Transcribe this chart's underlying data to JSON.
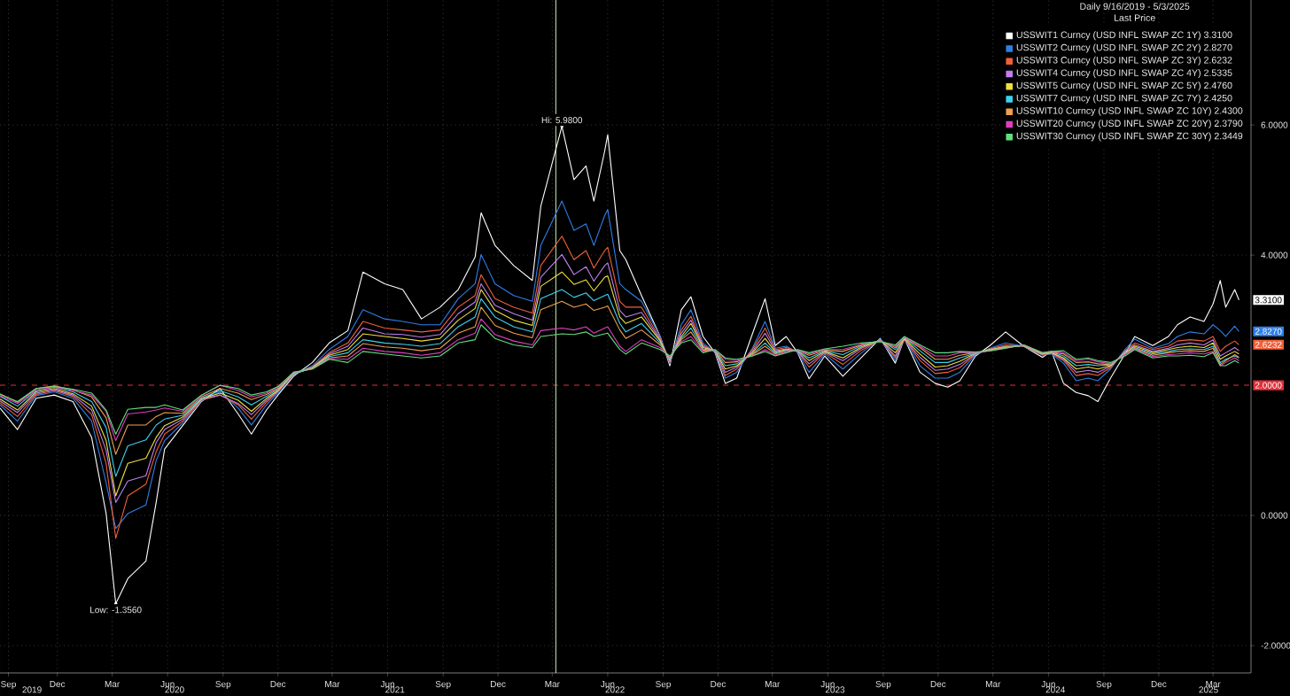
{
  "chart_data": {
    "type": "line",
    "title": "Daily 9/16/2019 - 5/3/2025",
    "subtitle": "Last Price",
    "legend": "top right",
    "grid": true,
    "xlim": [
      "2019-09-16",
      "2025-05-22"
    ],
    "ylim": [
      -2.42,
      7.92
    ],
    "yticks": [
      {
        "value": -2,
        "label": "-2.0000"
      },
      {
        "value": 0,
        "label": "0.0000"
      },
      {
        "value": 4,
        "label": "4.0000"
      },
      {
        "value": 6,
        "label": "6.0000"
      }
    ],
    "xticks": [
      {
        "value": "2019-09-30",
        "label": "Sep"
      },
      {
        "value": "2019-12-20",
        "label": "Dec"
      },
      {
        "value": "2020-03-20",
        "label": "Mar"
      },
      {
        "value": "2020-06-20",
        "label": "Jun"
      },
      {
        "value": "2020-09-20",
        "label": "Sep"
      },
      {
        "value": "2020-12-20",
        "label": "Dec"
      },
      {
        "value": "2021-03-20",
        "label": "Mar"
      },
      {
        "value": "2021-06-20",
        "label": "Jun"
      },
      {
        "value": "2021-09-20",
        "label": "Sep"
      },
      {
        "value": "2021-12-20",
        "label": "Dec"
      },
      {
        "value": "2022-03-20",
        "label": "Mar"
      },
      {
        "value": "2022-06-20",
        "label": "Jun"
      },
      {
        "value": "2022-09-20",
        "label": "Sep"
      },
      {
        "value": "2022-12-20",
        "label": "Dec"
      },
      {
        "value": "2023-03-20",
        "label": "Mar"
      },
      {
        "value": "2023-06-20",
        "label": "Jun"
      },
      {
        "value": "2023-09-20",
        "label": "Sep"
      },
      {
        "value": "2023-12-20",
        "label": "Dec"
      },
      {
        "value": "2024-03-20",
        "label": "Mar"
      },
      {
        "value": "2024-06-20",
        "label": "Jun"
      },
      {
        "value": "2024-09-20",
        "label": "Sep"
      },
      {
        "value": "2024-12-20",
        "label": "Dec"
      },
      {
        "value": "2025-03-20",
        "label": "Mar"
      }
    ],
    "ref_lines": [
      {
        "axis": "y",
        "value": 2,
        "label": "2.0000",
        "color": "#e0303a",
        "line_style": "dashed"
      },
      {
        "axis": "x",
        "value": "2022-03-26",
        "color": "#a8d08d"
      }
    ],
    "annotations": [
      {
        "text": "Hi: 5.9800",
        "x": "2022-04-05",
        "y": 5.98
      },
      {
        "text": "Low: -1.3560",
        "x": "2020-03-26",
        "y": -1.356
      },
      "2019",
      "2020",
      "2021",
      "2022",
      "2023",
      "2024",
      "2025"
    ],
    "x": [
      "2019-09-16",
      "2019-10-15",
      "2019-11-15",
      "2019-12-15",
      "2020-01-15",
      "2020-02-15",
      "2020-03-10",
      "2020-03-26",
      "2020-04-15",
      "2020-05-15",
      "2020-06-01",
      "2020-06-15",
      "2020-07-15",
      "2020-08-15",
      "2020-09-15",
      "2020-10-15",
      "2020-11-06",
      "2020-12-01",
      "2020-12-20",
      "2021-01-15",
      "2021-02-15",
      "2021-03-15",
      "2021-04-15",
      "2021-05-10",
      "2021-06-15",
      "2021-07-15",
      "2021-08-15",
      "2021-09-15",
      "2021-10-15",
      "2021-11-12",
      "2021-11-22",
      "2021-12-15",
      "2022-01-15",
      "2022-02-15",
      "2022-03-01",
      "2022-04-05",
      "2022-04-25",
      "2022-05-15",
      "2022-05-28",
      "2022-06-15",
      "2022-06-20",
      "2022-07-10",
      "2022-07-20",
      "2022-08-15",
      "2022-09-15",
      "2022-10-01",
      "2022-10-20",
      "2022-11-05",
      "2022-11-25",
      "2022-12-15",
      "2023-01-01",
      "2023-01-20",
      "2023-02-15",
      "2023-03-08",
      "2023-03-25",
      "2023-04-12",
      "2023-05-01",
      "2023-05-20",
      "2023-06-15",
      "2023-07-15",
      "2023-08-15",
      "2023-09-15",
      "2023-10-10",
      "2023-10-25",
      "2023-11-20",
      "2023-12-15",
      "2024-01-05",
      "2024-01-25",
      "2024-02-20",
      "2024-03-15",
      "2024-04-10",
      "2024-05-10",
      "2024-06-10",
      "2024-06-25",
      "2024-07-15",
      "2024-08-05",
      "2024-08-25",
      "2024-09-10",
      "2024-10-01",
      "2024-10-25",
      "2024-11-10",
      "2024-12-10",
      "2025-01-05",
      "2025-01-20",
      "2025-02-10",
      "2025-03-05",
      "2025-03-20",
      "2025-04-01",
      "2025-04-10",
      "2025-04-25",
      "2025-05-02"
    ],
    "series": [
      {
        "name": "USSWIT1 Curncy (USD INFL SWAP ZC 1Y) 3.3100",
        "color": "#ffffff",
        "values": [
          1.65,
          1.32,
          1.8,
          1.85,
          1.75,
          1.2,
          0.03,
          -1.356,
          -0.97,
          -0.7,
          0.2,
          1.02,
          1.38,
          1.75,
          1.95,
          1.56,
          1.25,
          1.62,
          1.85,
          2.14,
          2.35,
          2.65,
          2.84,
          3.74,
          3.56,
          3.47,
          3.02,
          3.2,
          3.47,
          3.97,
          4.65,
          4.15,
          3.84,
          3.61,
          4.75,
          5.98,
          5.16,
          5.37,
          4.83,
          5.6,
          5.85,
          4.07,
          3.93,
          3.38,
          2.75,
          2.3,
          3.16,
          3.36,
          2.75,
          2.5,
          2.03,
          2.11,
          2.79,
          3.33,
          2.61,
          2.75,
          2.5,
          2.1,
          2.45,
          2.14,
          2.43,
          2.72,
          2.34,
          2.72,
          2.2,
          2.03,
          1.97,
          2.07,
          2.45,
          2.61,
          2.82,
          2.6,
          2.43,
          2.52,
          2.03,
          1.89,
          1.84,
          1.75,
          2.11,
          2.48,
          2.75,
          2.61,
          2.75,
          2.93,
          3.05,
          2.98,
          3.25,
          3.61,
          3.2,
          3.47,
          3.31
        ],
        "value_labels": [
          null,
          null,
          null,
          null,
          null,
          null,
          null,
          null,
          null,
          null,
          null,
          null,
          null,
          null,
          null,
          null,
          null,
          null,
          null,
          null,
          null,
          null,
          null,
          null,
          null,
          null,
          null,
          null,
          null,
          null,
          null,
          null,
          null,
          null,
          null,
          null,
          null,
          null,
          null,
          null,
          null,
          null,
          null,
          null,
          null,
          null,
          null,
          null,
          null,
          null,
          null,
          null,
          null,
          null,
          null,
          null,
          null,
          null,
          null,
          null,
          null,
          null,
          null,
          null,
          null,
          null,
          null,
          null,
          null,
          null,
          null,
          null,
          null,
          null,
          null,
          null,
          null,
          null,
          null,
          null,
          null,
          null,
          null,
          null,
          null,
          null,
          null,
          null,
          null,
          null,
          "3.3100"
        ]
      },
      {
        "name": "USSWIT2 Curncy (USD INFL SWAP ZC 2Y) 2.8270",
        "color": "#2f7fe8",
        "values": [
          1.7,
          1.45,
          1.84,
          1.9,
          1.8,
          1.45,
          0.5,
          -0.2,
          0.03,
          0.16,
          0.84,
          1.15,
          1.42,
          1.76,
          1.9,
          1.65,
          1.39,
          1.7,
          1.88,
          2.16,
          2.3,
          2.55,
          2.75,
          3.16,
          3.02,
          2.98,
          2.93,
          2.93,
          3.33,
          3.56,
          4.01,
          3.56,
          3.38,
          3.29,
          4.15,
          4.83,
          4.38,
          4.48,
          4.15,
          4.61,
          4.7,
          3.56,
          3.47,
          3.29,
          2.75,
          2.33,
          2.93,
          3.16,
          2.65,
          2.51,
          2.11,
          2.2,
          2.57,
          2.98,
          2.57,
          2.6,
          2.51,
          2.2,
          2.48,
          2.25,
          2.5,
          2.71,
          2.38,
          2.72,
          2.3,
          2.11,
          2.11,
          2.2,
          2.47,
          2.57,
          2.65,
          2.6,
          2.46,
          2.48,
          2.34,
          2.07,
          2.11,
          2.07,
          2.25,
          2.55,
          2.71,
          2.57,
          2.64,
          2.75,
          2.82,
          2.79,
          2.93,
          2.84,
          2.75,
          2.91,
          2.827
        ],
        "value_labels": [
          null,
          null,
          null,
          null,
          null,
          null,
          null,
          null,
          null,
          null,
          null,
          null,
          null,
          null,
          null,
          null,
          null,
          null,
          null,
          null,
          null,
          null,
          null,
          null,
          null,
          null,
          null,
          null,
          null,
          null,
          null,
          null,
          null,
          null,
          null,
          null,
          null,
          null,
          null,
          null,
          null,
          null,
          null,
          null,
          null,
          null,
          null,
          null,
          null,
          null,
          null,
          null,
          null,
          null,
          null,
          null,
          null,
          null,
          null,
          null,
          null,
          null,
          null,
          null,
          null,
          null,
          null,
          null,
          null,
          null,
          null,
          null,
          null,
          null,
          null,
          null,
          null,
          null,
          null,
          null,
          null,
          null,
          null,
          null,
          null,
          null,
          null,
          null,
          null,
          null,
          "2.8270"
        ]
      },
      {
        "name": "USSWIT3 Curncy (USD INFL SWAP ZC 3Y) 2.6232",
        "color": "#f0603a",
        "values": [
          1.73,
          1.52,
          1.86,
          1.92,
          1.83,
          1.55,
          0.8,
          -0.35,
          0.3,
          0.48,
          0.98,
          1.25,
          1.45,
          1.77,
          1.85,
          1.7,
          1.48,
          1.74,
          1.9,
          2.17,
          2.28,
          2.5,
          2.65,
          2.98,
          2.88,
          2.85,
          2.82,
          2.85,
          3.2,
          3.38,
          3.7,
          3.33,
          3.2,
          3.11,
          3.84,
          4.29,
          3.93,
          4.07,
          3.8,
          4.07,
          4.12,
          3.29,
          3.2,
          3.2,
          2.72,
          2.35,
          2.85,
          3.06,
          2.62,
          2.52,
          2.15,
          2.25,
          2.55,
          2.88,
          2.55,
          2.58,
          2.52,
          2.28,
          2.5,
          2.32,
          2.54,
          2.7,
          2.42,
          2.71,
          2.38,
          2.18,
          2.2,
          2.27,
          2.48,
          2.56,
          2.62,
          2.6,
          2.47,
          2.49,
          2.38,
          2.15,
          2.18,
          2.15,
          2.27,
          2.53,
          2.65,
          2.55,
          2.6,
          2.68,
          2.7,
          2.68,
          2.75,
          2.52,
          2.6,
          2.68,
          2.6232
        ],
        "value_labels": [
          null,
          null,
          null,
          null,
          null,
          null,
          null,
          null,
          null,
          null,
          null,
          null,
          null,
          null,
          null,
          null,
          null,
          null,
          null,
          null,
          null,
          null,
          null,
          null,
          null,
          null,
          null,
          null,
          null,
          null,
          null,
          null,
          null,
          null,
          null,
          null,
          null,
          null,
          null,
          null,
          null,
          null,
          null,
          null,
          null,
          null,
          null,
          null,
          null,
          null,
          null,
          null,
          null,
          null,
          null,
          null,
          null,
          null,
          null,
          null,
          null,
          null,
          null,
          null,
          null,
          null,
          null,
          null,
          null,
          null,
          null,
          null,
          null,
          null,
          null,
          null,
          null,
          null,
          null,
          null,
          null,
          null,
          null,
          null,
          null,
          null,
          null,
          null,
          null,
          null,
          "2.6232"
        ]
      },
      {
        "name": "USSWIT4 Curncy (USD INFL SWAP ZC 4Y) 2.5335",
        "color": "#c080f0",
        "values": [
          1.76,
          1.58,
          1.88,
          1.93,
          1.85,
          1.62,
          1.0,
          0.2,
          0.53,
          0.61,
          1.12,
          1.32,
          1.48,
          1.78,
          1.85,
          1.72,
          1.55,
          1.77,
          1.91,
          2.17,
          2.27,
          2.48,
          2.6,
          2.88,
          2.79,
          2.78,
          2.74,
          2.78,
          3.1,
          3.28,
          3.56,
          3.23,
          3.1,
          3.0,
          3.66,
          4.01,
          3.7,
          3.82,
          3.6,
          3.84,
          3.88,
          3.15,
          3.05,
          3.12,
          2.7,
          2.37,
          2.8,
          3.0,
          2.6,
          2.52,
          2.2,
          2.28,
          2.52,
          2.8,
          2.53,
          2.56,
          2.52,
          2.33,
          2.51,
          2.38,
          2.57,
          2.7,
          2.45,
          2.71,
          2.43,
          2.23,
          2.25,
          2.32,
          2.48,
          2.55,
          2.6,
          2.6,
          2.48,
          2.5,
          2.4,
          2.2,
          2.23,
          2.2,
          2.29,
          2.52,
          2.62,
          2.52,
          2.57,
          2.62,
          2.65,
          2.62,
          2.7,
          2.45,
          2.5,
          2.58,
          2.53
        ]
      },
      {
        "name": "USSWIT5 Curncy (USD INFL SWAP ZC 5Y) 2.4760",
        "color": "#f0e040",
        "values": [
          1.79,
          1.62,
          1.9,
          1.95,
          1.87,
          1.68,
          1.15,
          0.3,
          0.8,
          0.88,
          1.2,
          1.38,
          1.51,
          1.79,
          1.88,
          1.77,
          1.6,
          1.8,
          1.92,
          2.18,
          2.27,
          2.46,
          2.55,
          2.79,
          2.75,
          2.72,
          2.68,
          2.72,
          3.0,
          3.18,
          3.47,
          3.15,
          3.0,
          2.92,
          3.52,
          3.74,
          3.55,
          3.62,
          3.45,
          3.66,
          3.68,
          3.05,
          2.95,
          3.05,
          2.68,
          2.39,
          2.75,
          2.95,
          2.58,
          2.53,
          2.25,
          2.3,
          2.5,
          2.72,
          2.51,
          2.55,
          2.53,
          2.38,
          2.52,
          2.42,
          2.59,
          2.69,
          2.5,
          2.72,
          2.48,
          2.28,
          2.3,
          2.37,
          2.49,
          2.55,
          2.59,
          2.61,
          2.48,
          2.5,
          2.42,
          2.25,
          2.28,
          2.25,
          2.3,
          2.5,
          2.6,
          2.5,
          2.55,
          2.58,
          2.6,
          2.58,
          2.65,
          2.4,
          2.45,
          2.52,
          2.48
        ]
      },
      {
        "name": "USSWIT7 Curncy (USD INFL SWAP ZC 7Y) 2.4250",
        "color": "#40d0f0",
        "values": [
          1.83,
          1.68,
          1.92,
          1.97,
          1.9,
          1.75,
          1.35,
          0.6,
          1.07,
          1.16,
          1.39,
          1.48,
          1.54,
          1.8,
          1.92,
          1.82,
          1.7,
          1.83,
          1.94,
          2.18,
          2.26,
          2.44,
          2.5,
          2.7,
          2.65,
          2.63,
          2.6,
          2.64,
          2.9,
          3.05,
          3.33,
          3.05,
          2.9,
          2.82,
          3.33,
          3.47,
          3.35,
          3.42,
          3.3,
          3.38,
          3.4,
          2.95,
          2.82,
          2.95,
          2.65,
          2.4,
          2.72,
          2.88,
          2.56,
          2.53,
          2.3,
          2.33,
          2.48,
          2.65,
          2.49,
          2.54,
          2.53,
          2.42,
          2.53,
          2.47,
          2.61,
          2.69,
          2.55,
          2.73,
          2.53,
          2.35,
          2.35,
          2.42,
          2.49,
          2.54,
          2.58,
          2.61,
          2.49,
          2.51,
          2.45,
          2.3,
          2.32,
          2.3,
          2.31,
          2.49,
          2.58,
          2.48,
          2.52,
          2.55,
          2.56,
          2.55,
          2.6,
          2.35,
          2.4,
          2.45,
          2.42
        ]
      },
      {
        "name": "USSWIT10 Curncy (USD INFL SWAP ZC 10Y) 2.4300",
        "color": "#f0a050",
        "values": [
          1.87,
          1.74,
          1.95,
          1.99,
          1.93,
          1.82,
          1.5,
          0.94,
          1.39,
          1.39,
          1.52,
          1.58,
          1.57,
          1.82,
          1.95,
          1.88,
          1.78,
          1.86,
          1.95,
          2.19,
          2.26,
          2.42,
          2.45,
          2.64,
          2.59,
          2.57,
          2.53,
          2.57,
          2.8,
          2.9,
          3.2,
          2.92,
          2.8,
          2.73,
          3.16,
          3.29,
          3.2,
          3.25,
          3.15,
          3.2,
          3.22,
          2.85,
          2.72,
          2.85,
          2.62,
          2.42,
          2.7,
          2.82,
          2.54,
          2.54,
          2.35,
          2.36,
          2.47,
          2.6,
          2.48,
          2.53,
          2.54,
          2.46,
          2.54,
          2.52,
          2.62,
          2.68,
          2.58,
          2.73,
          2.58,
          2.4,
          2.4,
          2.46,
          2.5,
          2.54,
          2.58,
          2.61,
          2.49,
          2.51,
          2.48,
          2.35,
          2.36,
          2.33,
          2.32,
          2.48,
          2.57,
          2.46,
          2.5,
          2.52,
          2.53,
          2.52,
          2.57,
          2.32,
          2.38,
          2.47,
          2.43
        ]
      },
      {
        "name": "USSWIT20 Curncy (USD INFL SWAP ZC 20Y) 2.3790",
        "color": "#e040c0",
        "values": [
          1.84,
          1.72,
          1.93,
          1.97,
          1.92,
          1.85,
          1.6,
          1.15,
          1.56,
          1.59,
          1.62,
          1.65,
          1.6,
          1.84,
          2.0,
          1.92,
          1.82,
          1.88,
          1.97,
          2.2,
          2.25,
          2.41,
          2.4,
          2.57,
          2.52,
          2.5,
          2.46,
          2.5,
          2.7,
          2.8,
          3.02,
          2.78,
          2.68,
          2.62,
          2.84,
          2.88,
          2.85,
          2.9,
          2.8,
          2.88,
          2.9,
          2.6,
          2.52,
          2.7,
          2.58,
          2.44,
          2.67,
          2.75,
          2.52,
          2.54,
          2.4,
          2.38,
          2.45,
          2.55,
          2.46,
          2.52,
          2.54,
          2.48,
          2.55,
          2.55,
          2.63,
          2.68,
          2.6,
          2.74,
          2.6,
          2.45,
          2.45,
          2.5,
          2.5,
          2.53,
          2.57,
          2.62,
          2.5,
          2.52,
          2.5,
          2.38,
          2.4,
          2.36,
          2.33,
          2.47,
          2.56,
          2.44,
          2.47,
          2.48,
          2.5,
          2.48,
          2.52,
          2.3,
          2.35,
          2.42,
          2.38
        ]
      },
      {
        "name": "USSWIT30 Curncy (USD INFL SWAP ZC 30Y) 2.3449",
        "color": "#60e080",
        "values": [
          1.86,
          1.75,
          1.95,
          1.98,
          1.94,
          1.88,
          1.62,
          1.25,
          1.63,
          1.66,
          1.66,
          1.7,
          1.62,
          1.85,
          2.0,
          1.95,
          1.85,
          1.9,
          1.98,
          2.2,
          2.25,
          2.4,
          2.35,
          2.52,
          2.48,
          2.45,
          2.42,
          2.45,
          2.65,
          2.7,
          2.93,
          2.72,
          2.62,
          2.58,
          2.75,
          2.79,
          2.78,
          2.82,
          2.75,
          2.79,
          2.8,
          2.55,
          2.48,
          2.65,
          2.55,
          2.45,
          2.65,
          2.7,
          2.5,
          2.55,
          2.42,
          2.4,
          2.45,
          2.52,
          2.45,
          2.5,
          2.55,
          2.5,
          2.56,
          2.6,
          2.65,
          2.67,
          2.62,
          2.75,
          2.62,
          2.5,
          2.5,
          2.52,
          2.51,
          2.53,
          2.57,
          2.62,
          2.5,
          2.52,
          2.53,
          2.4,
          2.42,
          2.38,
          2.35,
          2.45,
          2.55,
          2.42,
          2.45,
          2.45,
          2.46,
          2.44,
          2.5,
          2.3,
          2.3,
          2.38,
          2.34
        ]
      }
    ]
  }
}
